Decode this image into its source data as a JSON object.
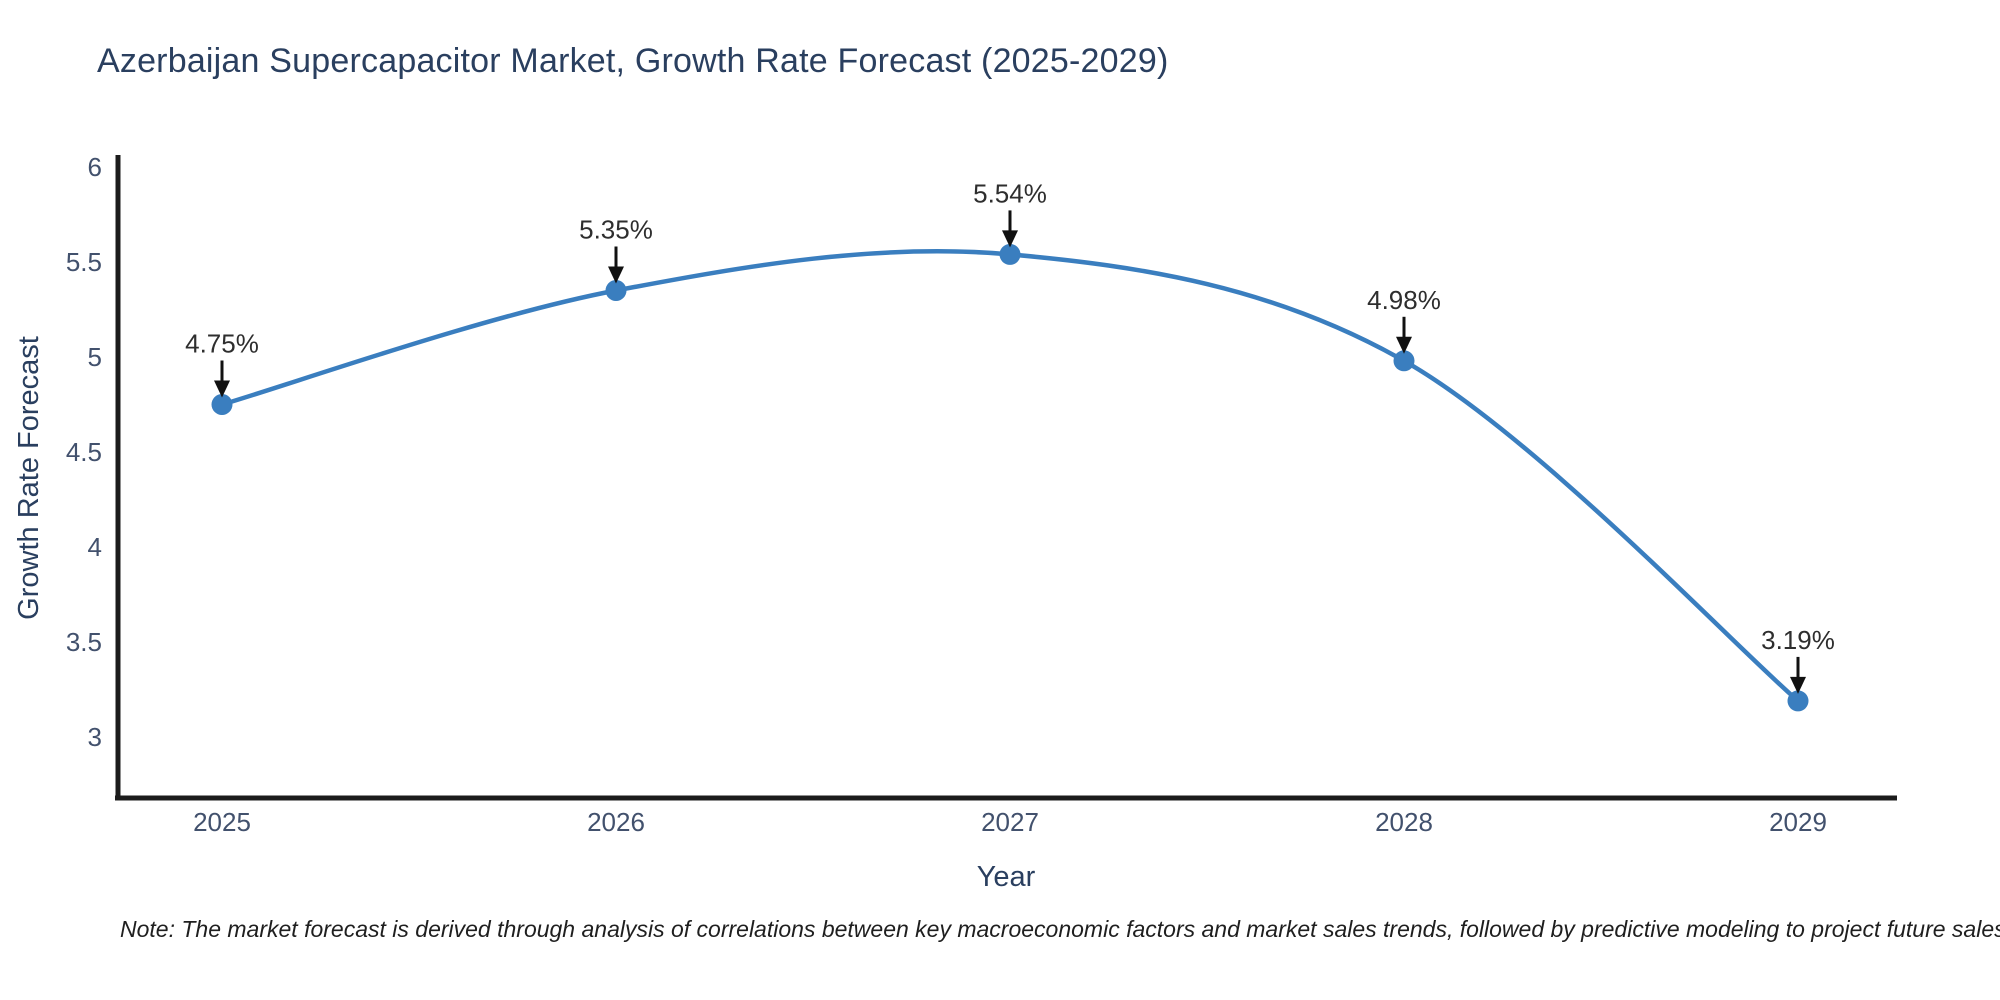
{
  "title": "Azerbaijan Supercapacitor Market, Growth Rate Forecast (2025-2029)",
  "note": "Note: The market forecast is derived through analysis of correlations between key macroeconomic factors and market sales trends, followed by predictive modeling to project future sales.",
  "chart_data": {
    "type": "line",
    "title": "Azerbaijan Supercapacitor Market, Growth Rate Forecast (2025-2029)",
    "xlabel": "Year",
    "ylabel": "Growth Rate Forecast",
    "categories": [
      "2025",
      "2026",
      "2027",
      "2028",
      "2029"
    ],
    "values": [
      4.75,
      5.35,
      5.54,
      4.98,
      3.19
    ],
    "point_labels": [
      "4.75%",
      "5.35%",
      "5.54%",
      "4.98%",
      "3.19%"
    ],
    "yticks": [
      3,
      3.5,
      4,
      4.5,
      5,
      5.5,
      6
    ],
    "ylim": [
      2.7,
      6.05
    ],
    "grid": false,
    "legend_position": "none",
    "line_style": "spline",
    "colors": {
      "line": "#3a7ebf",
      "marker": "#3a7ebf",
      "axis": "#1c1c1c",
      "tick_label": "#42516d",
      "axis_title": "#2a3f5f",
      "annotation_text": "#2e2e2e",
      "annotation_arrow": "#111111",
      "background": "#ffffff"
    }
  }
}
